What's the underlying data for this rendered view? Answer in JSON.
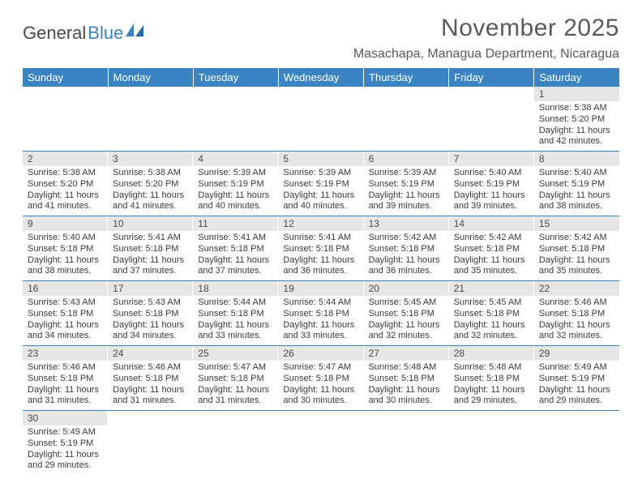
{
  "logo": {
    "text1": "General",
    "text2": "Blue"
  },
  "title": "November 2025",
  "location": "Masachapa, Managua Department, Nicaragua",
  "colors": {
    "header_bg": "#3a84c4",
    "header_text": "#ffffff",
    "daynum_bg": "#e6e6e6",
    "row_border": "#3a84c4",
    "text": "#404040"
  },
  "weekdays": [
    "Sunday",
    "Monday",
    "Tuesday",
    "Wednesday",
    "Thursday",
    "Friday",
    "Saturday"
  ],
  "weeks": [
    [
      null,
      null,
      null,
      null,
      null,
      null,
      {
        "n": "1",
        "sunrise": "5:38 AM",
        "sunset": "5:20 PM",
        "daylight": "11 hours and 42 minutes."
      }
    ],
    [
      {
        "n": "2",
        "sunrise": "5:38 AM",
        "sunset": "5:20 PM",
        "daylight": "11 hours and 41 minutes."
      },
      {
        "n": "3",
        "sunrise": "5:38 AM",
        "sunset": "5:20 PM",
        "daylight": "11 hours and 41 minutes."
      },
      {
        "n": "4",
        "sunrise": "5:39 AM",
        "sunset": "5:19 PM",
        "daylight": "11 hours and 40 minutes."
      },
      {
        "n": "5",
        "sunrise": "5:39 AM",
        "sunset": "5:19 PM",
        "daylight": "11 hours and 40 minutes."
      },
      {
        "n": "6",
        "sunrise": "5:39 AM",
        "sunset": "5:19 PM",
        "daylight": "11 hours and 39 minutes."
      },
      {
        "n": "7",
        "sunrise": "5:40 AM",
        "sunset": "5:19 PM",
        "daylight": "11 hours and 39 minutes."
      },
      {
        "n": "8",
        "sunrise": "5:40 AM",
        "sunset": "5:19 PM",
        "daylight": "11 hours and 38 minutes."
      }
    ],
    [
      {
        "n": "9",
        "sunrise": "5:40 AM",
        "sunset": "5:18 PM",
        "daylight": "11 hours and 38 minutes."
      },
      {
        "n": "10",
        "sunrise": "5:41 AM",
        "sunset": "5:18 PM",
        "daylight": "11 hours and 37 minutes."
      },
      {
        "n": "11",
        "sunrise": "5:41 AM",
        "sunset": "5:18 PM",
        "daylight": "11 hours and 37 minutes."
      },
      {
        "n": "12",
        "sunrise": "5:41 AM",
        "sunset": "5:18 PM",
        "daylight": "11 hours and 36 minutes."
      },
      {
        "n": "13",
        "sunrise": "5:42 AM",
        "sunset": "5:18 PM",
        "daylight": "11 hours and 36 minutes."
      },
      {
        "n": "14",
        "sunrise": "5:42 AM",
        "sunset": "5:18 PM",
        "daylight": "11 hours and 35 minutes."
      },
      {
        "n": "15",
        "sunrise": "5:42 AM",
        "sunset": "5:18 PM",
        "daylight": "11 hours and 35 minutes."
      }
    ],
    [
      {
        "n": "16",
        "sunrise": "5:43 AM",
        "sunset": "5:18 PM",
        "daylight": "11 hours and 34 minutes."
      },
      {
        "n": "17",
        "sunrise": "5:43 AM",
        "sunset": "5:18 PM",
        "daylight": "11 hours and 34 minutes."
      },
      {
        "n": "18",
        "sunrise": "5:44 AM",
        "sunset": "5:18 PM",
        "daylight": "11 hours and 33 minutes."
      },
      {
        "n": "19",
        "sunrise": "5:44 AM",
        "sunset": "5:18 PM",
        "daylight": "11 hours and 33 minutes."
      },
      {
        "n": "20",
        "sunrise": "5:45 AM",
        "sunset": "5:18 PM",
        "daylight": "11 hours and 32 minutes."
      },
      {
        "n": "21",
        "sunrise": "5:45 AM",
        "sunset": "5:18 PM",
        "daylight": "11 hours and 32 minutes."
      },
      {
        "n": "22",
        "sunrise": "5:46 AM",
        "sunset": "5:18 PM",
        "daylight": "11 hours and 32 minutes."
      }
    ],
    [
      {
        "n": "23",
        "sunrise": "5:46 AM",
        "sunset": "5:18 PM",
        "daylight": "11 hours and 31 minutes."
      },
      {
        "n": "24",
        "sunrise": "5:46 AM",
        "sunset": "5:18 PM",
        "daylight": "11 hours and 31 minutes."
      },
      {
        "n": "25",
        "sunrise": "5:47 AM",
        "sunset": "5:18 PM",
        "daylight": "11 hours and 31 minutes."
      },
      {
        "n": "26",
        "sunrise": "5:47 AM",
        "sunset": "5:18 PM",
        "daylight": "11 hours and 30 minutes."
      },
      {
        "n": "27",
        "sunrise": "5:48 AM",
        "sunset": "5:18 PM",
        "daylight": "11 hours and 30 minutes."
      },
      {
        "n": "28",
        "sunrise": "5:48 AM",
        "sunset": "5:18 PM",
        "daylight": "11 hours and 29 minutes."
      },
      {
        "n": "29",
        "sunrise": "5:49 AM",
        "sunset": "5:19 PM",
        "daylight": "11 hours and 29 minutes."
      }
    ],
    [
      {
        "n": "30",
        "sunrise": "5:49 AM",
        "sunset": "5:19 PM",
        "daylight": "11 hours and 29 minutes."
      },
      null,
      null,
      null,
      null,
      null,
      null
    ]
  ],
  "labels": {
    "sunrise": "Sunrise:",
    "sunset": "Sunset:",
    "daylight": "Daylight:"
  }
}
